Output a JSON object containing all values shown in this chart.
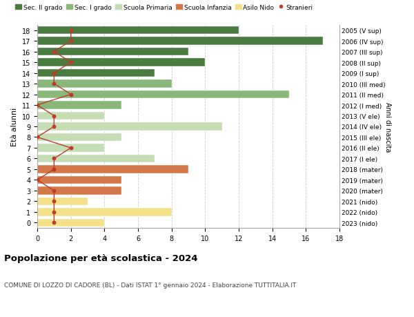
{
  "ages": [
    18,
    17,
    16,
    15,
    14,
    13,
    12,
    11,
    10,
    9,
    8,
    7,
    6,
    5,
    4,
    3,
    2,
    1,
    0
  ],
  "right_labels": [
    "2005 (V sup)",
    "2006 (IV sup)",
    "2007 (III sup)",
    "2008 (II sup)",
    "2009 (I sup)",
    "2010 (III med)",
    "2011 (II med)",
    "2012 (I med)",
    "2013 (V ele)",
    "2014 (IV ele)",
    "2015 (III ele)",
    "2016 (II ele)",
    "2017 (I ele)",
    "2018 (mater)",
    "2019 (mater)",
    "2020 (mater)",
    "2021 (nido)",
    "2022 (nido)",
    "2023 (nido)"
  ],
  "bar_values": [
    12,
    17,
    9,
    10,
    7,
    8,
    15,
    5,
    4,
    11,
    5,
    4,
    7,
    9,
    5,
    5,
    3,
    8,
    4
  ],
  "stranieri_values": [
    2,
    2,
    1,
    2,
    1,
    1,
    2,
    0,
    1,
    1,
    0,
    2,
    1,
    1,
    0,
    1,
    1,
    1,
    1
  ],
  "bar_colors": [
    "#4a7c3f",
    "#4a7c3f",
    "#4a7c3f",
    "#4a7c3f",
    "#4a7c3f",
    "#8ab87a",
    "#8ab87a",
    "#8ab87a",
    "#c5ddb3",
    "#c5ddb3",
    "#c5ddb3",
    "#c5ddb3",
    "#c5ddb3",
    "#d4784a",
    "#d4784a",
    "#d4784a",
    "#f5e08a",
    "#f5e08a",
    "#f5e08a"
  ],
  "legend_labels": [
    "Sec. II grado",
    "Sec. I grado",
    "Scuola Primaria",
    "Scuola Infanzia",
    "Asilo Nido",
    "Stranieri"
  ],
  "legend_colors": [
    "#4a7c3f",
    "#8ab87a",
    "#c5ddb3",
    "#d4784a",
    "#f5e08a",
    "#c0392b"
  ],
  "stranieri_color": "#c0392b",
  "title": "Popolazione per età scolastica - 2024",
  "subtitle": "COMUNE DI LOZZO DI CADORE (BL) - Dati ISTAT 1° gennaio 2024 - Elaborazione TUTTITALIA.IT",
  "ylabel": "Età alunni",
  "right_ylabel": "Anni di nascita",
  "xlim": [
    0,
    18
  ],
  "xticks": [
    0,
    2,
    4,
    6,
    8,
    10,
    12,
    14,
    16,
    18
  ],
  "background_color": "#ffffff",
  "grid_color": "#cccccc",
  "bar_height": 0.75
}
